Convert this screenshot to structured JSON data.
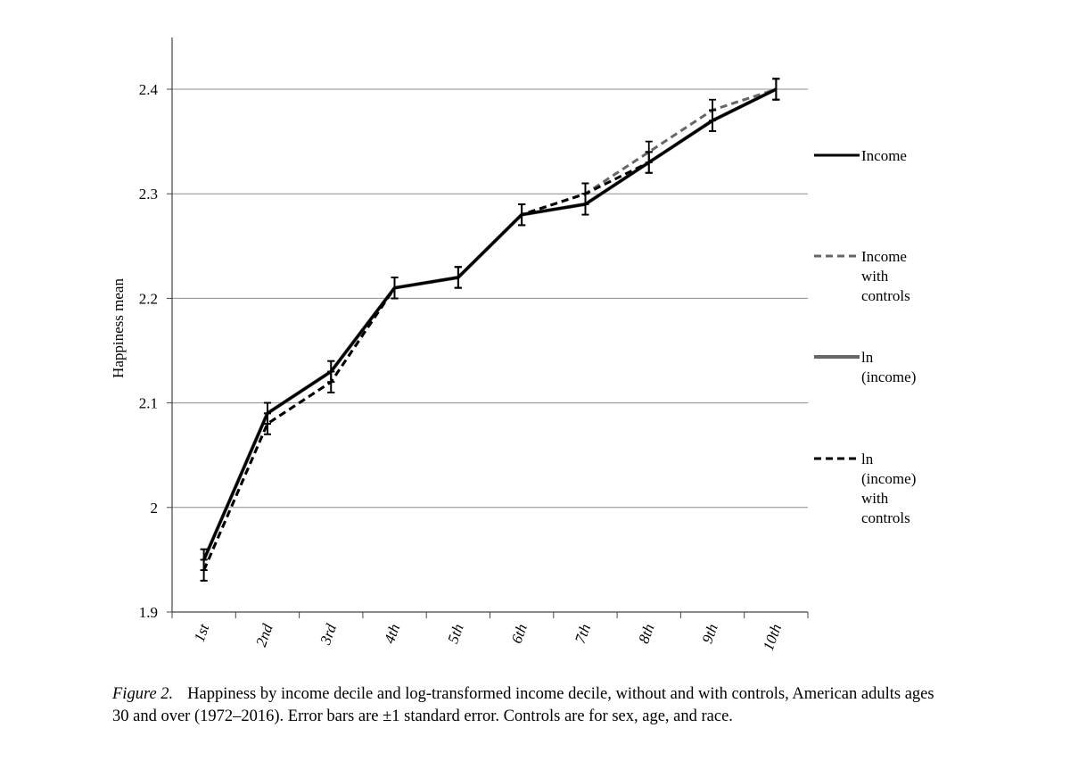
{
  "chart_data": {
    "type": "line",
    "title": "",
    "xlabel": "",
    "ylabel": "Happiness mean",
    "ylim": [
      1.9,
      2.4
    ],
    "yticks": [
      "1.9",
      "2",
      "2.1",
      "2.2",
      "2.3",
      "2.4"
    ],
    "categories": [
      "1st",
      "2nd",
      "3rd",
      "4th",
      "5th",
      "6th",
      "7th",
      "8th",
      "9th",
      "10th"
    ],
    "grid": "horizontal",
    "legend_position": "right",
    "error_bars": "±1 standard error",
    "series": [
      {
        "name": "Income",
        "style": "solid",
        "color": "#000000",
        "values": [
          1.95,
          2.09,
          2.13,
          2.21,
          2.22,
          2.28,
          2.29,
          2.33,
          2.37,
          2.4
        ],
        "stderr": [
          0.01,
          0.01,
          0.01,
          0.01,
          0.01,
          0.01,
          0.01,
          0.01,
          0.01,
          0.01
        ]
      },
      {
        "name": "Income with controls",
        "style": "dashed",
        "color": "#666666",
        "values": [
          1.94,
          2.08,
          2.12,
          2.21,
          2.22,
          2.28,
          2.3,
          2.34,
          2.38,
          2.4
        ],
        "stderr": [
          0.01,
          0.01,
          0.01,
          0.01,
          0.01,
          0.01,
          0.01,
          0.01,
          0.01,
          0.01
        ]
      },
      {
        "name": "ln (income)",
        "style": "solid",
        "color": "#666666",
        "values": [
          1.95,
          2.09,
          2.13,
          2.21,
          2.22,
          2.28,
          2.29,
          2.33,
          2.37,
          2.4
        ],
        "stderr": [
          0.01,
          0.01,
          0.01,
          0.01,
          0.01,
          0.01,
          0.01,
          0.01,
          0.01,
          0.01
        ]
      },
      {
        "name": "ln (income) with controls",
        "style": "dashed",
        "color": "#000000",
        "values": [
          1.94,
          2.08,
          2.12,
          2.21,
          2.22,
          2.28,
          2.3,
          2.33,
          2.37,
          2.4
        ],
        "stderr": [
          0.01,
          0.01,
          0.01,
          0.01,
          0.01,
          0.01,
          0.01,
          0.01,
          0.01,
          0.01
        ]
      }
    ],
    "legend": [
      {
        "series": 0,
        "lines": [
          "Income"
        ]
      },
      {
        "series": 1,
        "lines": [
          "Income",
          "with",
          "controls"
        ]
      },
      {
        "series": 2,
        "lines": [
          "ln",
          "(income)"
        ]
      },
      {
        "series": 3,
        "lines": [
          "ln",
          "(income)",
          "with",
          "controls"
        ]
      }
    ]
  },
  "caption": {
    "figure_label": "Figure 2.",
    "text": "Happiness by income decile and log-transformed income decile, without and with controls, American adults ages 30 and over (1972–2016). Error bars are ±1 standard error. Controls are for sex, age, and race."
  }
}
